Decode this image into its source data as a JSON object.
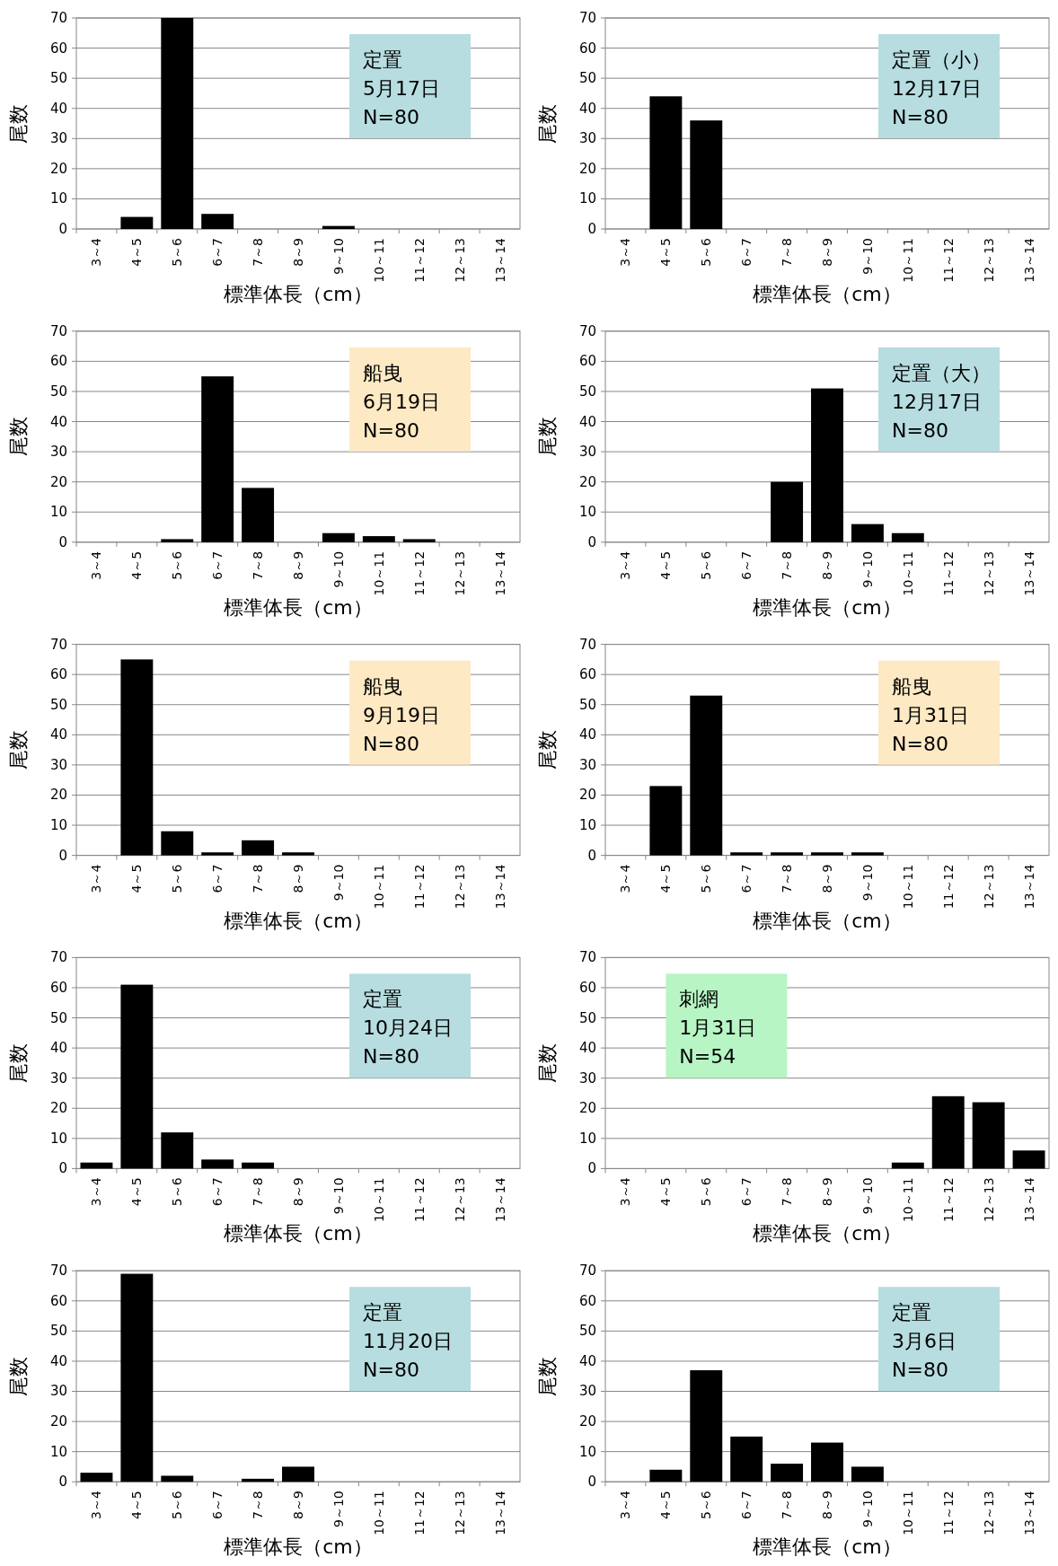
{
  "chart_data": [
    {
      "type": "bar",
      "categories": [
        "3～4",
        "4～5",
        "5～6",
        "6～7",
        "7～8",
        "8～9",
        "9～10",
        "10～11",
        "11～12",
        "12～13",
        "13～14"
      ],
      "values": [
        0,
        4,
        70,
        5,
        0,
        0,
        1,
        0,
        0,
        0,
        0
      ],
      "color": "#000000",
      "ylim": [
        0,
        70
      ],
      "yticks": [
        0,
        10,
        20,
        30,
        40,
        50,
        60,
        70
      ],
      "grid": "y",
      "legend": false,
      "xlabel": "標準体長（cm）",
      "ylabel": "尾数",
      "annotations": [
        "定置",
        "5月17日",
        "N=80"
      ]
    },
    {
      "type": "bar",
      "categories": [
        "3～4",
        "4～5",
        "5～6",
        "6～7",
        "7～8",
        "8～9",
        "9～10",
        "10～11",
        "11～12",
        "12～13",
        "13～14"
      ],
      "values": [
        0,
        44,
        36,
        0,
        0,
        0,
        0,
        0,
        0,
        0,
        0
      ],
      "color": "#000000",
      "ylim": [
        0,
        70
      ],
      "yticks": [
        0,
        10,
        20,
        30,
        40,
        50,
        60,
        70
      ],
      "grid": "y",
      "legend": false,
      "xlabel": "標準体長（cm）",
      "ylabel": "尾数",
      "annotations": [
        "定置（小）",
        "12月17日",
        "N=80"
      ]
    },
    {
      "type": "bar",
      "categories": [
        "3～4",
        "4～5",
        "5～6",
        "6～7",
        "7～8",
        "8～9",
        "9～10",
        "10～11",
        "11～12",
        "12～13",
        "13～14"
      ],
      "values": [
        0,
        0,
        1,
        55,
        18,
        0,
        3,
        2,
        1,
        0,
        0
      ],
      "color": "#000000",
      "ylim": [
        0,
        70
      ],
      "yticks": [
        0,
        10,
        20,
        30,
        40,
        50,
        60,
        70
      ],
      "grid": "y",
      "legend": false,
      "xlabel": "標準体長（cm）",
      "ylabel": "尾数",
      "annotations": [
        "船曳",
        "6月19日",
        "N=80"
      ]
    },
    {
      "type": "bar",
      "categories": [
        "3～4",
        "4～5",
        "5～6",
        "6～7",
        "7～8",
        "8～9",
        "9～10",
        "10～11",
        "11～12",
        "12～13",
        "13～14"
      ],
      "values": [
        0,
        0,
        0,
        0,
        20,
        51,
        6,
        3,
        0,
        0,
        0
      ],
      "color": "#000000",
      "ylim": [
        0,
        70
      ],
      "yticks": [
        0,
        10,
        20,
        30,
        40,
        50,
        60,
        70
      ],
      "grid": "y",
      "legend": false,
      "xlabel": "標準体長（cm）",
      "ylabel": "尾数",
      "annotations": [
        "定置（大）",
        "12月17日",
        "N=80"
      ]
    },
    {
      "type": "bar",
      "categories": [
        "3～4",
        "4～5",
        "5～6",
        "6～7",
        "7～8",
        "8～9",
        "9～10",
        "10～11",
        "11～12",
        "12～13",
        "13～14"
      ],
      "values": [
        0,
        65,
        8,
        1,
        5,
        1,
        0,
        0,
        0,
        0,
        0
      ],
      "color": "#000000",
      "ylim": [
        0,
        70
      ],
      "yticks": [
        0,
        10,
        20,
        30,
        40,
        50,
        60,
        70
      ],
      "grid": "y",
      "legend": false,
      "xlabel": "標準体長（cm）",
      "ylabel": "尾数",
      "annotations": [
        "船曳",
        "9月19日",
        "N=80"
      ]
    },
    {
      "type": "bar",
      "categories": [
        "3～4",
        "4～5",
        "5～6",
        "6～7",
        "7～8",
        "8～9",
        "9～10",
        "10～11",
        "11～12",
        "12～13",
        "13～14"
      ],
      "values": [
        0,
        23,
        53,
        1,
        1,
        1,
        1,
        0,
        0,
        0,
        0
      ],
      "color": "#000000",
      "ylim": [
        0,
        70
      ],
      "yticks": [
        0,
        10,
        20,
        30,
        40,
        50,
        60,
        70
      ],
      "grid": "y",
      "legend": false,
      "xlabel": "標準体長（cm）",
      "ylabel": "尾数",
      "annotations": [
        "船曳",
        "1月31日",
        "N=80"
      ]
    },
    {
      "type": "bar",
      "categories": [
        "3～4",
        "4～5",
        "5～6",
        "6～7",
        "7～8",
        "8～9",
        "9～10",
        "10～11",
        "11～12",
        "12～13",
        "13～14"
      ],
      "values": [
        2,
        61,
        12,
        3,
        2,
        0,
        0,
        0,
        0,
        0,
        0
      ],
      "color": "#000000",
      "ylim": [
        0,
        70
      ],
      "yticks": [
        0,
        10,
        20,
        30,
        40,
        50,
        60,
        70
      ],
      "grid": "y",
      "legend": false,
      "xlabel": "標準体長（cm）",
      "ylabel": "尾数",
      "annotations": [
        "定置",
        "10月24日",
        "N=80"
      ]
    },
    {
      "type": "bar",
      "categories": [
        "3～4",
        "4～5",
        "5～6",
        "6～7",
        "7～8",
        "8～9",
        "9～10",
        "10～11",
        "11～12",
        "12～13",
        "13～14"
      ],
      "values": [
        0,
        0,
        0,
        0,
        0,
        0,
        0,
        2,
        24,
        22,
        6
      ],
      "color": "#000000",
      "ylim": [
        0,
        70
      ],
      "yticks": [
        0,
        10,
        20,
        30,
        40,
        50,
        60,
        70
      ],
      "grid": "y",
      "legend": false,
      "xlabel": "標準体長（cm）",
      "ylabel": "尾数",
      "annotations": [
        "刺網",
        "1月31日",
        "N=54"
      ]
    },
    {
      "type": "bar",
      "categories": [
        "3～4",
        "4～5",
        "5～6",
        "6～7",
        "7～8",
        "8～9",
        "9～10",
        "10～11",
        "11～12",
        "12～13",
        "13～14"
      ],
      "values": [
        3,
        69,
        2,
        0,
        1,
        5,
        0,
        0,
        0,
        0,
        0
      ],
      "color": "#000000",
      "ylim": [
        0,
        70
      ],
      "yticks": [
        0,
        10,
        20,
        30,
        40,
        50,
        60,
        70
      ],
      "grid": "y",
      "legend": false,
      "xlabel": "標準体長（cm）",
      "ylabel": "尾数",
      "annotations": [
        "定置",
        "11月20日",
        "N=80"
      ]
    },
    {
      "type": "bar",
      "categories": [
        "3～4",
        "4～5",
        "5～6",
        "6～7",
        "7～8",
        "8～9",
        "9～10",
        "10～11",
        "11～12",
        "12～13",
        "13～14"
      ],
      "values": [
        0,
        4,
        37,
        15,
        6,
        13,
        5,
        0,
        0,
        0,
        0
      ],
      "color": "#000000",
      "ylim": [
        0,
        70
      ],
      "yticks": [
        0,
        10,
        20,
        30,
        40,
        50,
        60,
        70
      ],
      "grid": "y",
      "legend": false,
      "xlabel": "標準体長（cm）",
      "ylabel": "尾数",
      "annotations": [
        "定置",
        "3月6日",
        "N=80"
      ]
    }
  ]
}
